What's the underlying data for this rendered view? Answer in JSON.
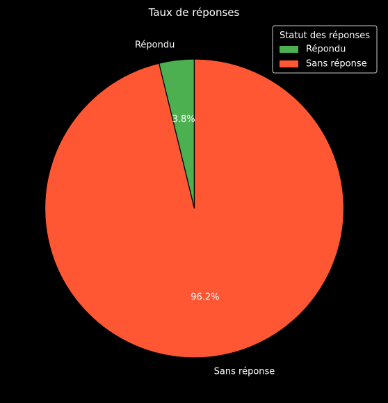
{
  "chart_data": {
    "type": "pie",
    "title": "Taux de réponses",
    "slices": [
      {
        "label": "Répondu",
        "value": 3.8,
        "pct_label": "3.8%",
        "color": "#4caf50"
      },
      {
        "label": "Sans réponse",
        "value": 96.2,
        "pct_label": "96.2%",
        "color": "#ff5733"
      }
    ],
    "start_angle_deg": 90,
    "direction": "counterclockwise",
    "edge_color": "#000000",
    "legend": {
      "title": "Statut des réponses",
      "placement": "top-right",
      "entries": [
        "Répondu",
        "Sans réponse"
      ]
    }
  }
}
